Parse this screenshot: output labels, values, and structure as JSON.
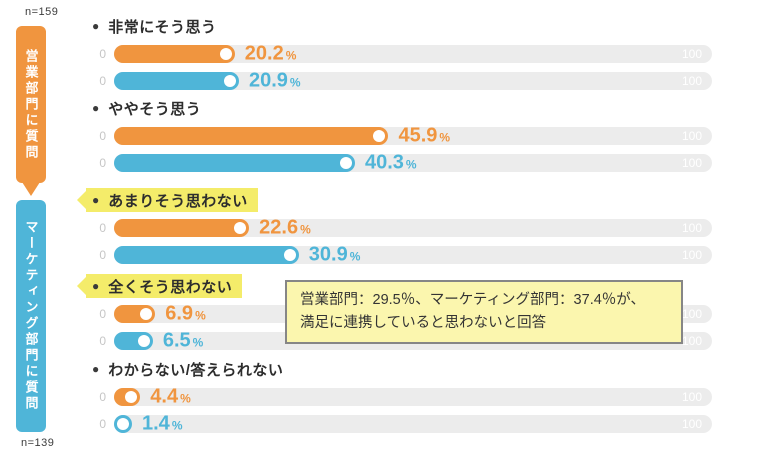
{
  "bullet": "●",
  "scale": {
    "min": "0",
    "max": "100"
  },
  "unit": "%",
  "tabs": {
    "sales": {
      "label": "営業部門に質問",
      "n": "n=159",
      "color": "#F0953F"
    },
    "marketing": {
      "label": "マーケティング部門に質問",
      "n": "n=139",
      "color": "#4FB5D8"
    }
  },
  "colors": {
    "sales_orange": "#F0953F",
    "marketing_blue": "#4FB5D8",
    "track_gray": "#ECECEC",
    "highlight_yellow": "#F4EC6A",
    "callout_yellow": "#FBF6AE"
  },
  "chart_data": {
    "type": "bar",
    "title": "",
    "categories": [
      "非常にそう思う",
      "ややそう思う",
      "あまりそう思わない",
      "全くそう思わない",
      "わからない/答えられない"
    ],
    "series": [
      {
        "name": "営業部門に質問",
        "n": "n=159",
        "color": "#F0953F",
        "values": [
          20.2,
          45.9,
          22.6,
          6.9,
          4.4
        ]
      },
      {
        "name": "マーケティング部門に質問",
        "n": "n=139",
        "color": "#4FB5D8",
        "values": [
          20.9,
          40.3,
          30.9,
          6.5,
          1.4
        ]
      }
    ],
    "xlim": [
      0,
      100
    ],
    "unit": "%",
    "highlighted_categories": [
      "あまりそう思わない",
      "全くそう思わない"
    ]
  },
  "annotation": {
    "line1": "営業部門：29.5％、マーケティング部門：37.4％が、",
    "line2": "満足に連携していると思わないと回答"
  }
}
